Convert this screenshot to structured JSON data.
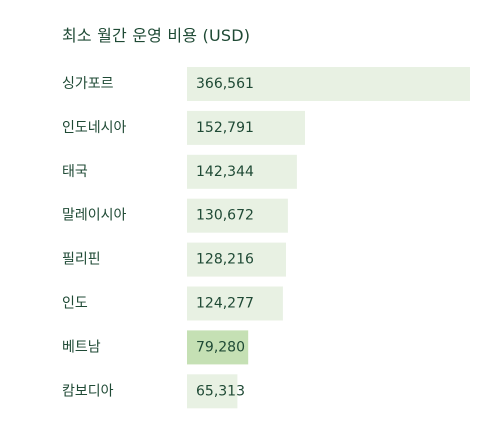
{
  "chart_data": {
    "type": "bar",
    "orientation": "horizontal",
    "title": "최소 월간 운영 비용 (USD)",
    "categories": [
      "싱가포르",
      "인도네시아",
      "태국",
      "말레이시아",
      "필리핀",
      "인도",
      "베트남",
      "캄보디아"
    ],
    "values": [
      366561,
      152791,
      142344,
      130672,
      128216,
      124277,
      79280,
      65313
    ],
    "value_labels": [
      "366,561",
      "152,791",
      "142,344",
      "130,672",
      "128,216",
      "124,277",
      "79,280",
      "65,313"
    ],
    "highlight_category": "베트남",
    "xlim": [
      0,
      366561
    ],
    "grid": false,
    "legend": "none"
  },
  "colors": {
    "bar": "#e8f1e3",
    "bar_highlight": "#c5e0b4",
    "text": "#1f4a35"
  }
}
